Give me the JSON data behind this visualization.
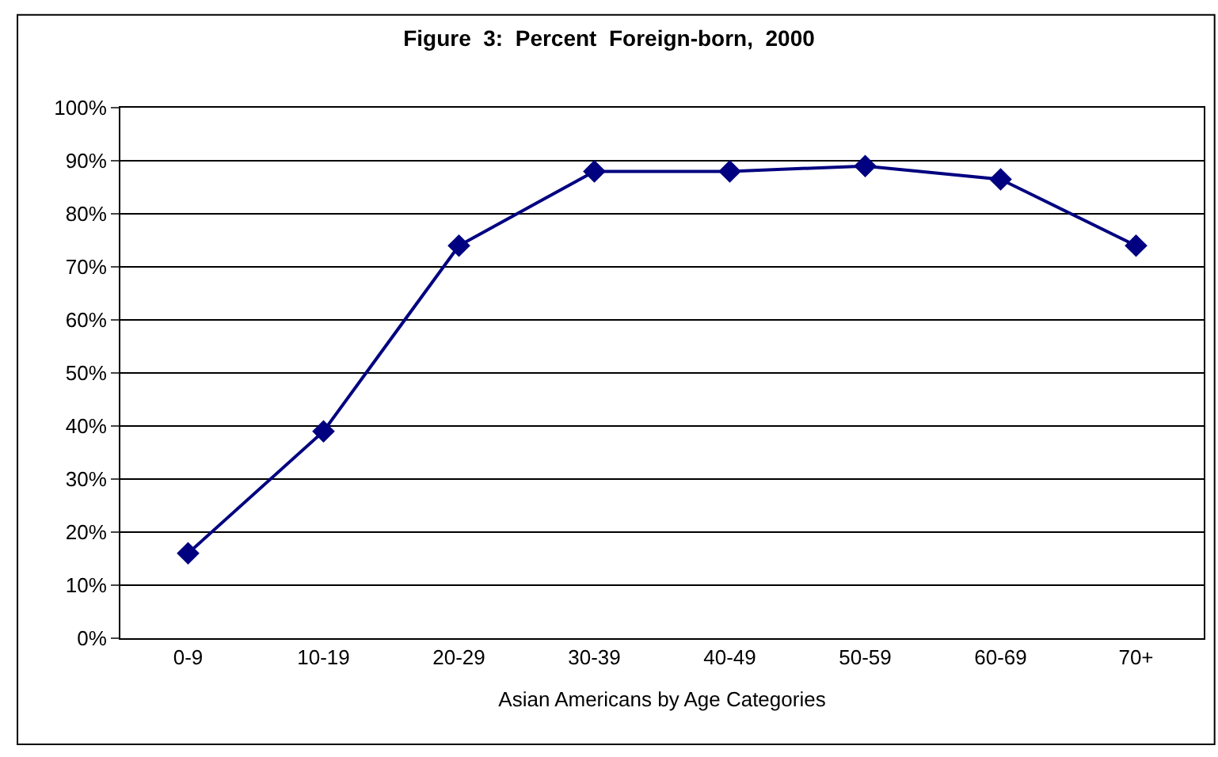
{
  "chart_data": {
    "type": "line",
    "title": "Figure  3:  Percent  Foreign-born,  2000",
    "xlabel": "Asian Americans by Age Categories",
    "categories": [
      "0-9",
      "10-19",
      "20-29",
      "30-39",
      "40-49",
      "50-59",
      "60-69",
      "70+"
    ],
    "series": [
      {
        "color": "#000080",
        "values": [
          16,
          39,
          74,
          88,
          88,
          89,
          86.5,
          74
        ]
      }
    ],
    "ylim": [
      0,
      100
    ],
    "yticks": [
      {
        "value": 0,
        "label": "0%"
      },
      {
        "value": 10,
        "label": "10%"
      },
      {
        "value": 20,
        "label": "20%"
      },
      {
        "value": 30,
        "label": "30%"
      },
      {
        "value": 40,
        "label": "40%"
      },
      {
        "value": 50,
        "label": "50%"
      },
      {
        "value": 60,
        "label": "60%"
      },
      {
        "value": 70,
        "label": "70%"
      },
      {
        "value": 80,
        "label": "80%"
      },
      {
        "value": 90,
        "label": "90%"
      },
      {
        "value": 100,
        "label": "100%"
      }
    ],
    "grid": "y",
    "marker": "diamond",
    "line_style": "solid",
    "legend": false
  }
}
